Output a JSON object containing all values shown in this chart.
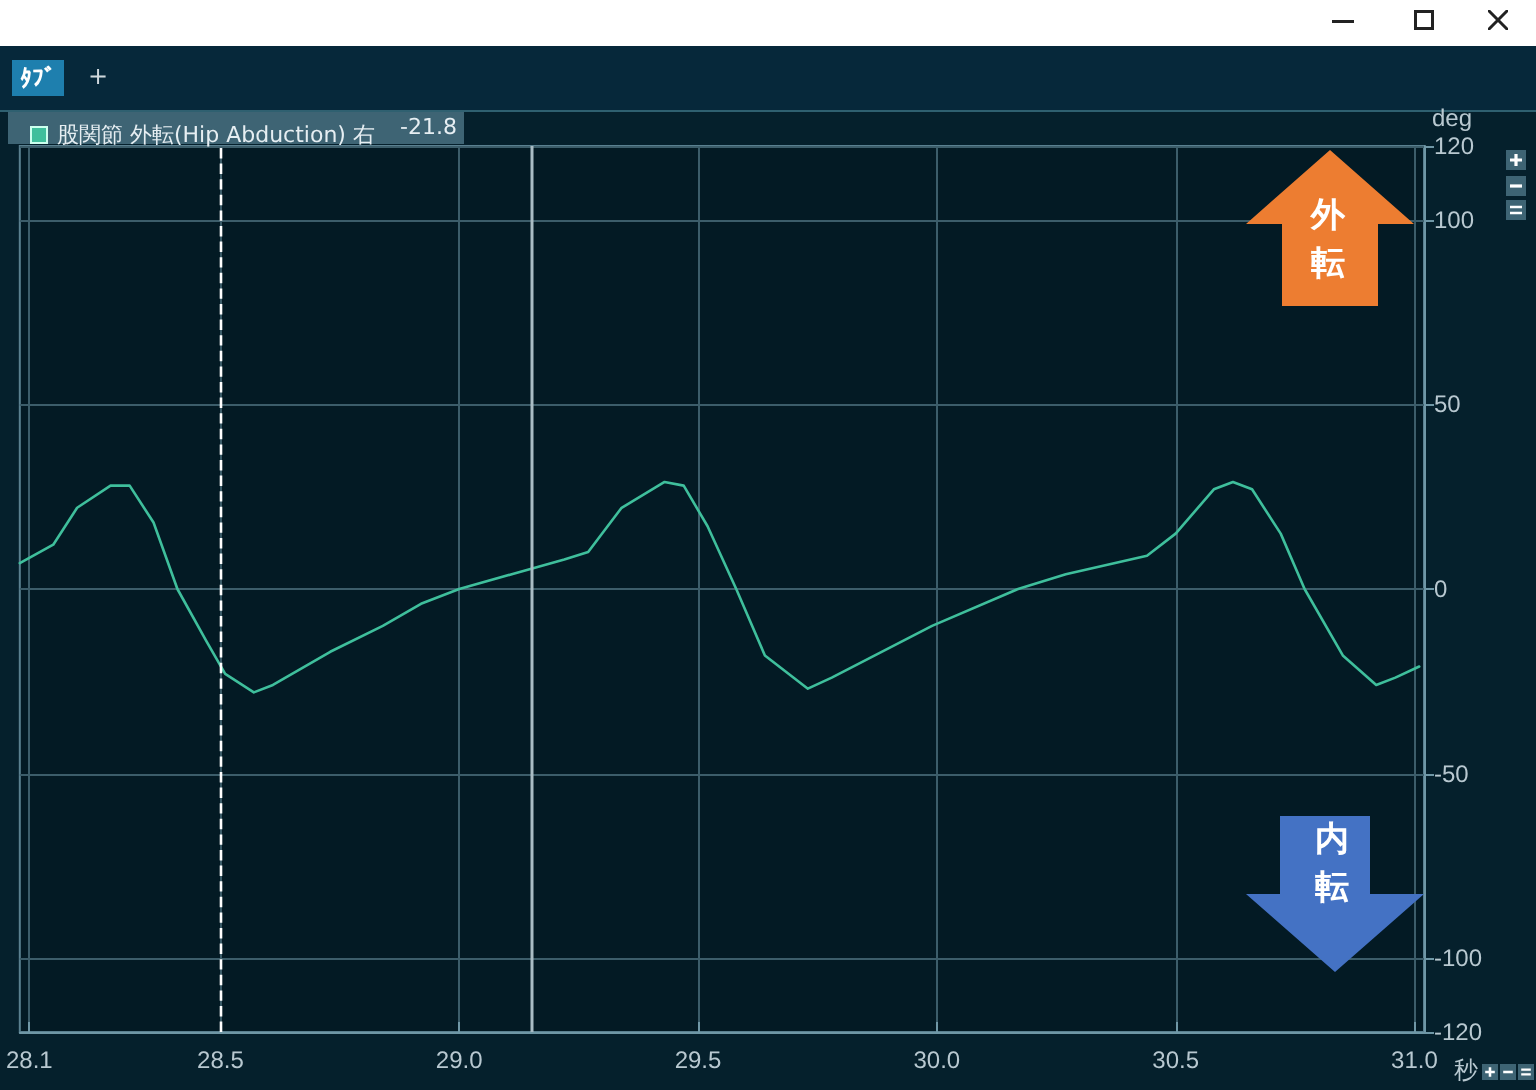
{
  "chart_data": {
    "type": "line",
    "xlabel": "秒",
    "ylabel": "deg",
    "x": [
      28.08,
      28.15,
      28.2,
      28.27,
      28.31,
      28.36,
      28.41,
      28.47,
      28.51,
      28.57,
      28.61,
      28.73,
      28.84,
      28.92,
      29.0,
      29.11,
      29.22,
      29.27,
      29.34,
      29.43,
      29.47,
      29.52,
      29.58,
      29.64,
      29.73,
      29.78,
      29.99,
      30.17,
      30.27,
      30.44,
      30.5,
      30.58,
      30.62,
      30.66,
      30.72,
      30.77,
      30.85,
      30.92,
      30.96,
      31.01
    ],
    "series": [
      {
        "name": "股関節 外転(Hip Abduction) 右",
        "color": "#3fbf9c",
        "values": [
          7,
          12,
          22,
          28,
          28,
          18,
          0,
          -14,
          -23,
          -28,
          -26,
          -17,
          -10,
          -4,
          0,
          4,
          8,
          10,
          22,
          29,
          28,
          17,
          0,
          -18,
          -27,
          -24,
          -10,
          0,
          4,
          9,
          15,
          27,
          29,
          27,
          15,
          0,
          -18,
          -26,
          -24,
          -21
        ]
      }
    ],
    "xlim": [
      28.08,
      31.02
    ],
    "ylim": [
      -120,
      120
    ],
    "xticks": [
      28.1,
      28.5,
      {
        "value": 29,
        "label": "29.0"
      },
      29.5,
      {
        "value": 30,
        "label": "30.0"
      },
      30.5,
      {
        "value": 31,
        "label": "31.0"
      }
    ],
    "yticks": [
      -120,
      -100,
      -50,
      0,
      50,
      100,
      120
    ],
    "grid": true,
    "legend": "top left",
    "marker": "none",
    "line_style": "solid",
    "ref_lines": [
      {
        "axis": "x",
        "value": 28.5,
        "line_style": "dashed",
        "color": "#ffffff"
      },
      {
        "axis": "x",
        "value": 29.15,
        "color": "#a9bcc4"
      }
    ],
    "annotations": [
      "ﾀﾌﾞ",
      "+",
      "-21.8",
      "外転",
      "内転"
    ]
  }
}
